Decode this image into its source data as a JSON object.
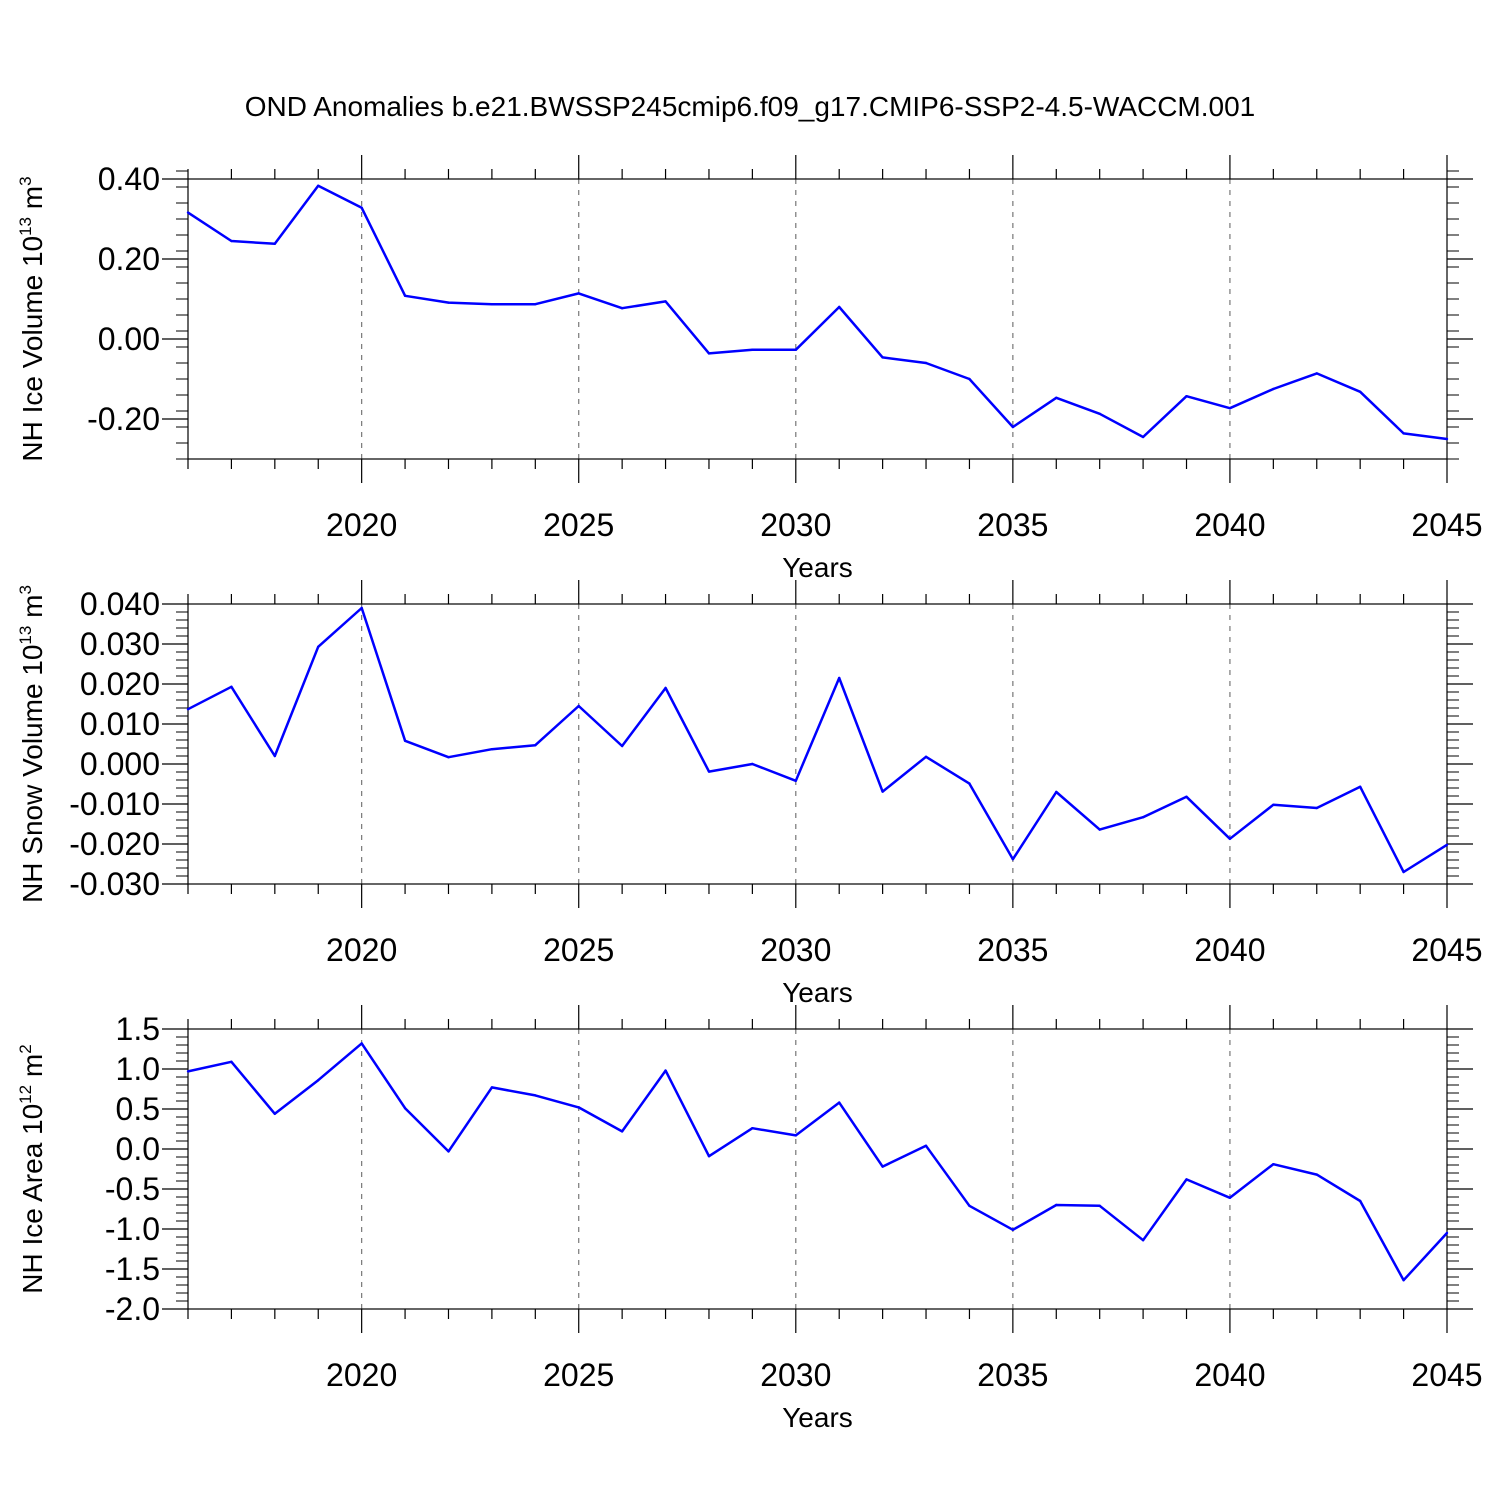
{
  "title": "OND Anomalies b.e21.BWSSP245cmip6.f09_g17.CMIP6-SSP2-4.5-WACCM.001",
  "line_color": "#0000ff",
  "chart_data": [
    {
      "type": "line",
      "ylabel": "NH Ice Volume 10",
      "ylabel_exp": "13",
      "ylabel_unit": " m",
      "ylabel_unit_exp": "3",
      "xlabel": "Years",
      "ylim": [
        -0.3,
        0.4
      ],
      "xlim": [
        2016,
        2045
      ],
      "yticks": [
        -0.2,
        0.0,
        0.2,
        0.4
      ],
      "ytick_labels": [
        "-0.20",
        "0.00",
        "0.20",
        "0.40"
      ],
      "yminor_step": 0.04,
      "xticks": [
        2020,
        2025,
        2030,
        2035,
        2040,
        2045
      ],
      "xtick_labels": [
        "2020",
        "2025",
        "2030",
        "2035",
        "2040",
        "2045"
      ],
      "grid_x": true,
      "series": [
        {
          "x": [
            2016,
            2017,
            2018,
            2019,
            2020,
            2021,
            2022,
            2023,
            2024,
            2025,
            2026,
            2027,
            2028,
            2029,
            2030,
            2031,
            2032,
            2033,
            2034,
            2035,
            2036,
            2037,
            2038,
            2039,
            2040,
            2041,
            2042,
            2043,
            2044,
            2045
          ],
          "values": [
            0.316,
            0.245,
            0.238,
            0.383,
            0.328,
            0.108,
            0.091,
            0.087,
            0.087,
            0.114,
            0.077,
            0.094,
            -0.036,
            -0.027,
            -0.027,
            0.08,
            -0.046,
            -0.06,
            -0.1,
            -0.22,
            -0.147,
            -0.187,
            -0.245,
            -0.143,
            -0.173,
            -0.125,
            -0.086,
            -0.132,
            -0.236,
            -0.25
          ]
        }
      ]
    },
    {
      "type": "line",
      "ylabel": "NH Snow Volume 10",
      "ylabel_exp": "13",
      "ylabel_unit": " m",
      "ylabel_unit_exp": "3",
      "xlabel": "Years",
      "ylim": [
        -0.03,
        0.04
      ],
      "xlim": [
        2016,
        2045
      ],
      "yticks": [
        -0.03,
        -0.02,
        -0.01,
        0.0,
        0.01,
        0.02,
        0.03,
        0.04
      ],
      "ytick_labels": [
        "-0.030",
        "-0.020",
        "-0.010",
        "0.000",
        "0.010",
        "0.020",
        "0.030",
        "0.040"
      ],
      "yminor_step": 0.002,
      "xticks": [
        2020,
        2025,
        2030,
        2035,
        2040,
        2045
      ],
      "xtick_labels": [
        "2020",
        "2025",
        "2030",
        "2035",
        "2040",
        "2045"
      ],
      "grid_x": true,
      "series": [
        {
          "x": [
            2016,
            2017,
            2018,
            2019,
            2020,
            2021,
            2022,
            2023,
            2024,
            2025,
            2026,
            2027,
            2028,
            2029,
            2030,
            2031,
            2032,
            2033,
            2034,
            2035,
            2036,
            2037,
            2038,
            2039,
            2040,
            2041,
            2042,
            2043,
            2044,
            2045
          ],
          "values": [
            0.0137,
            0.0193,
            0.002,
            0.0293,
            0.039,
            0.0058,
            0.0017,
            0.0037,
            0.0047,
            0.0145,
            0.0045,
            0.019,
            -0.0019,
            0.0,
            -0.0042,
            0.0215,
            -0.0069,
            0.0018,
            -0.0049,
            -0.0238,
            -0.007,
            -0.0164,
            -0.0133,
            -0.0082,
            -0.0187,
            -0.0102,
            -0.011,
            -0.0057,
            -0.027,
            -0.0202
          ]
        }
      ]
    },
    {
      "type": "line",
      "ylabel": "NH Ice Area 10",
      "ylabel_exp": "12",
      "ylabel_unit": " m",
      "ylabel_unit_exp": "2",
      "xlabel": "Years",
      "ylim": [
        -2.0,
        1.5
      ],
      "xlim": [
        2016,
        2045
      ],
      "yticks": [
        -2.0,
        -1.5,
        -1.0,
        -0.5,
        0.0,
        0.5,
        1.0,
        1.5
      ],
      "ytick_labels": [
        "-2.0",
        "-1.5",
        "-1.0",
        "-0.5",
        "0.0",
        "0.5",
        "1.0",
        "1.5"
      ],
      "yminor_step": 0.1,
      "xticks": [
        2020,
        2025,
        2030,
        2035,
        2040,
        2045
      ],
      "xtick_labels": [
        "2020",
        "2025",
        "2030",
        "2035",
        "2040",
        "2045"
      ],
      "grid_x": true,
      "series": [
        {
          "x": [
            2016,
            2017,
            2018,
            2019,
            2020,
            2021,
            2022,
            2023,
            2024,
            2025,
            2026,
            2027,
            2028,
            2029,
            2030,
            2031,
            2032,
            2033,
            2034,
            2035,
            2036,
            2037,
            2038,
            2039,
            2040,
            2041,
            2042,
            2043,
            2044,
            2045
          ],
          "values": [
            0.97,
            1.09,
            0.44,
            0.86,
            1.32,
            0.51,
            -0.03,
            0.77,
            0.67,
            0.52,
            0.22,
            0.98,
            -0.09,
            0.26,
            0.17,
            0.58,
            -0.22,
            0.04,
            -0.71,
            -1.01,
            -0.7,
            -0.71,
            -1.14,
            -0.38,
            -0.61,
            -0.19,
            -0.32,
            -0.65,
            -1.64,
            -1.05
          ]
        }
      ]
    }
  ]
}
